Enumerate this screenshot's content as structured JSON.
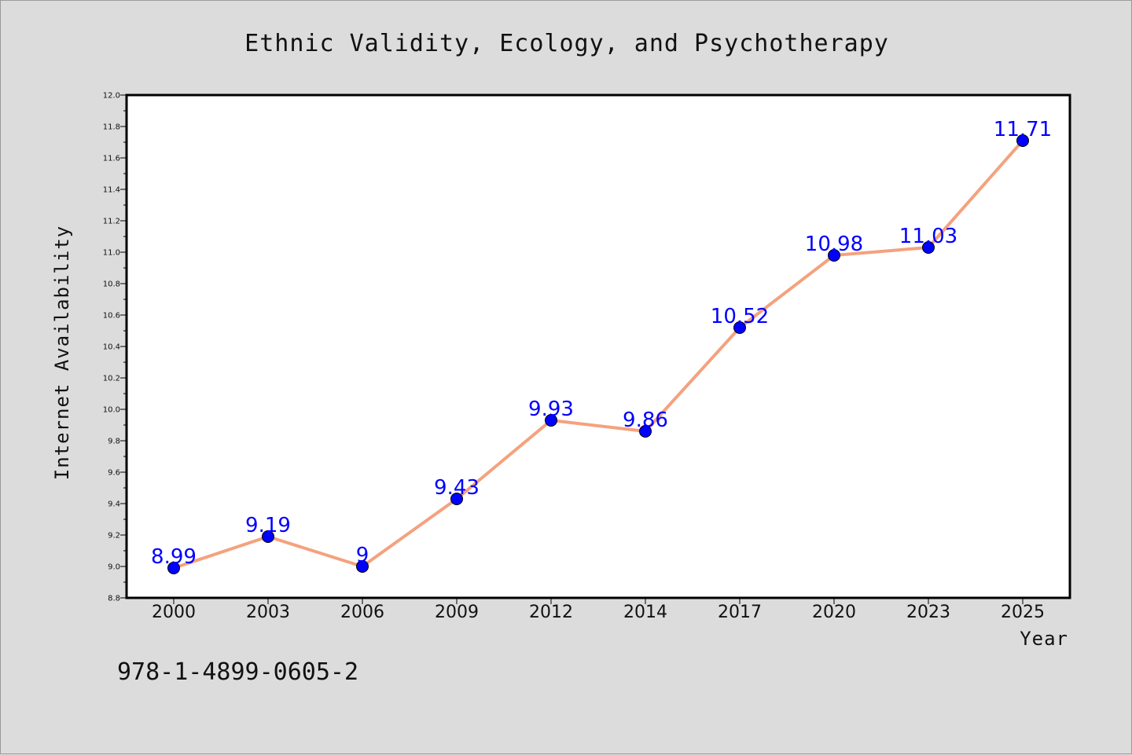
{
  "chart_data": {
    "type": "line",
    "title": "Ethnic Validity, Ecology, and Psychotherapy",
    "xlabel": "Year",
    "ylabel": "Internet Availability",
    "categories": [
      "2000",
      "2003",
      "2006",
      "2009",
      "2012",
      "2014",
      "2017",
      "2020",
      "2023",
      "2025"
    ],
    "series": [
      {
        "values": [
          8.99,
          9.19,
          9.0,
          9.43,
          9.93,
          9.86,
          10.52,
          10.98,
          11.03,
          11.71
        ],
        "labels": [
          "8.99",
          "9.19",
          "9",
          "9.43",
          "9.93",
          "9.86",
          "10.52",
          "10.98",
          "11.03",
          "11.71"
        ],
        "line_color": "#f4a27e",
        "marker_color": "#0000ff"
      }
    ],
    "ylim": [
      8.8,
      12.0
    ],
    "yticks": [
      "8.8",
      "9.0",
      "9.2",
      "9.4",
      "9.6",
      "9.8",
      "10.0",
      "10.2",
      "10.4",
      "10.6",
      "10.8",
      "11.0",
      "11.2",
      "11.4",
      "11.6",
      "11.8",
      "12.0"
    ],
    "grid": false,
    "legend": "none"
  },
  "footnote": "978-1-4899-0605-2",
  "colors": {
    "background": "#dcdcdc",
    "plot_background": "#ffffff",
    "line": "#f4a27e",
    "marker": "#0000ff",
    "data_label": "#0000ff"
  }
}
